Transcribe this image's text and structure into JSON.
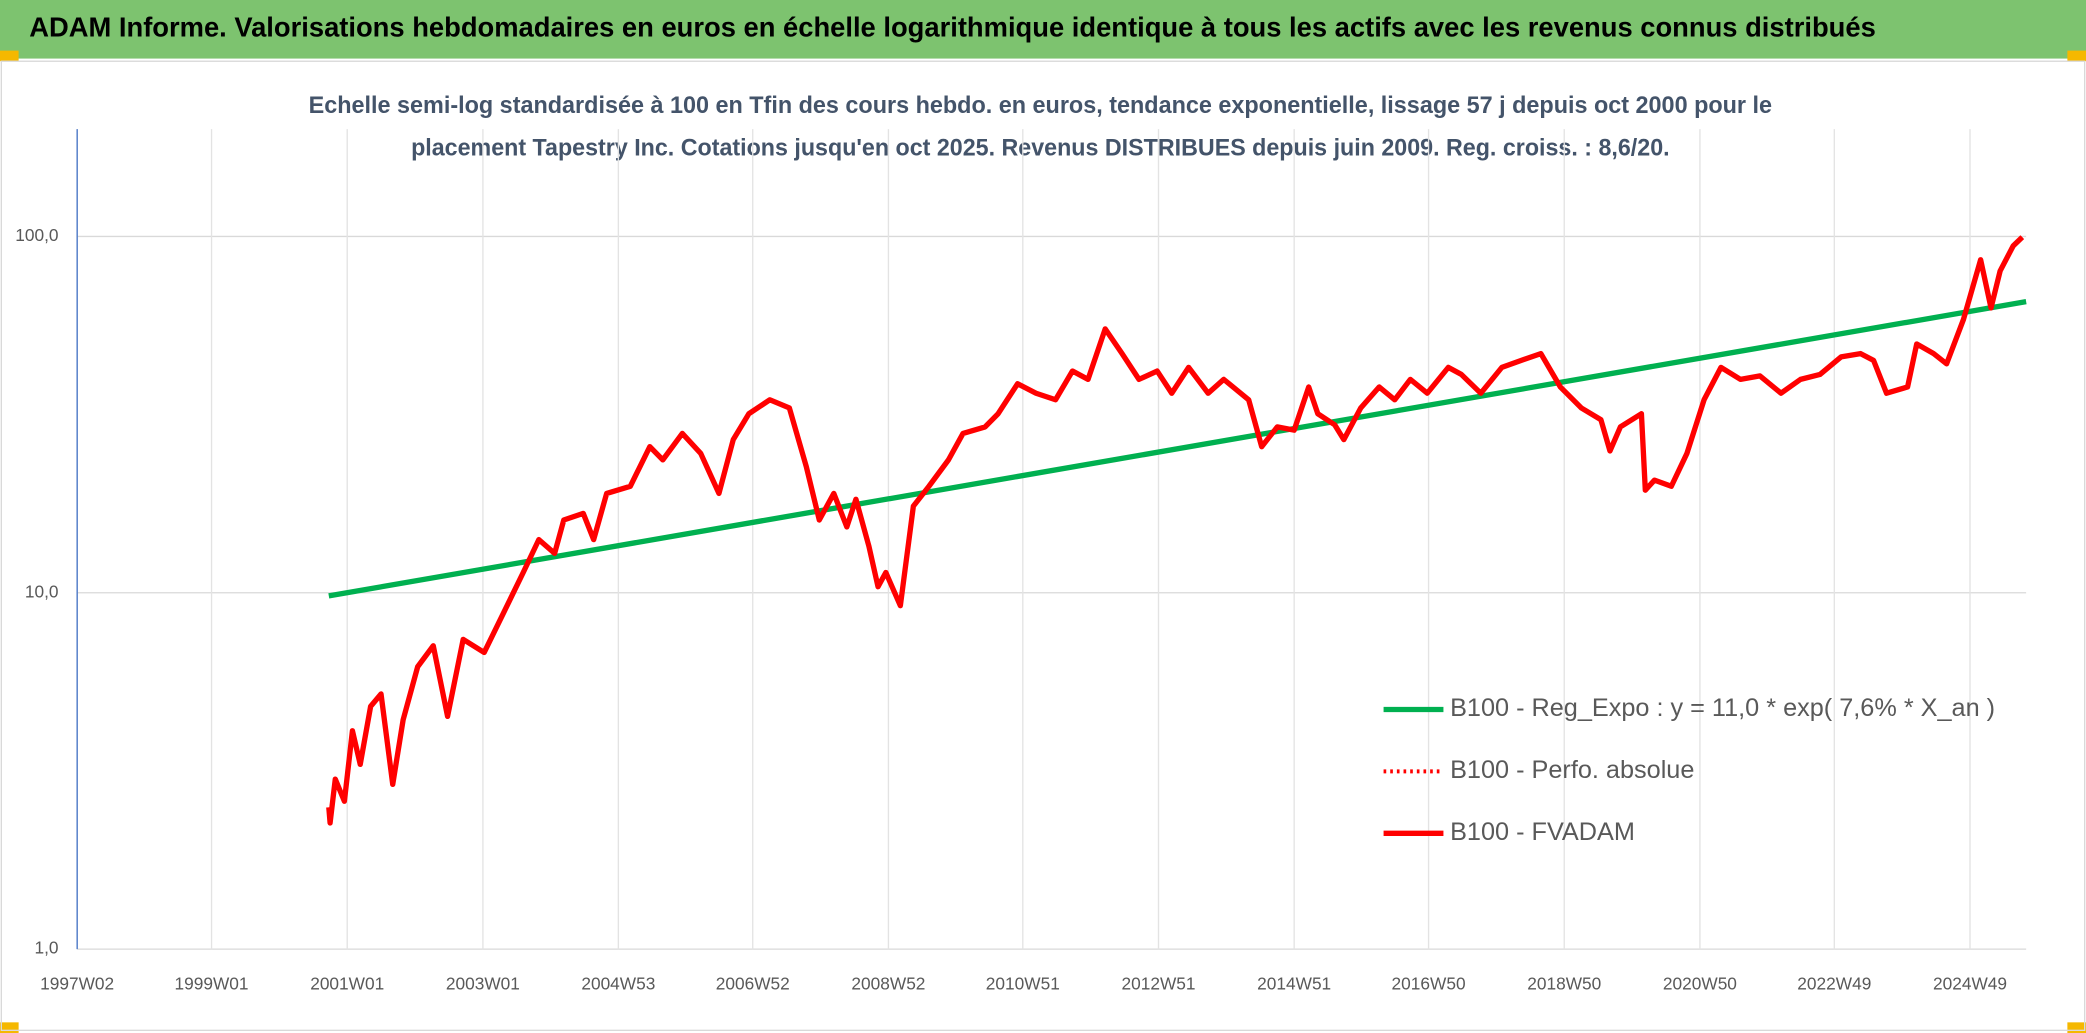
{
  "chart_data": {
    "type": "line",
    "title": "ADAM Informe. Valorisations hebdomadaires en euros en échelle logarithmique identique à tous les actifs avec les revenus connus distribués",
    "subtitle": [
      "Echelle semi-log standardisée à 100 en Tfin des cours hebdo. en euros, tendance exponentielle, lissage 57 j depuis oct 2000 pour le",
      "placement Tapestry Inc. Cotations jusqu'en oct 2025. Revenus DISTRIBUES depuis juin 2009. Reg. croiss. : 8,6/20."
    ],
    "log_scale": true,
    "grid": true,
    "legend": "right",
    "xlim": [
      "1997W02",
      "2025W40"
    ],
    "xticks": [
      "1997W02",
      "1999W01",
      "2001W01",
      "2003W01",
      "2004W53",
      "2006W52",
      "2008W52",
      "2010W51",
      "2012W51",
      "2014W51",
      "2016W50",
      "2018W50",
      "2020W50",
      "2022W49",
      "2024W49"
    ],
    "ylim": [
      1,
      200
    ],
    "yticks": [
      {
        "value": 1,
        "label": "1,0"
      },
      {
        "value": 10,
        "label": "10,0"
      },
      {
        "value": 100,
        "label": "100,0"
      }
    ],
    "series": [
      {
        "name": "B100 - Reg_Expo : y = 11,0 * exp( 7,6% *  X_an )",
        "color": "#00b050",
        "dash": false,
        "x": [
          "2000W39",
          "2025W40"
        ],
        "values": [
          9.8,
          65.6
        ]
      },
      {
        "name": "B100 - Perfo. absolue",
        "color": "#ff0000",
        "dash": true,
        "x": [
          "2000W39",
          "2000W40",
          "2000W44",
          "2000W51",
          "2001W05",
          "2001W11",
          "2001W19",
          "2001W27",
          "2001W36",
          "2001W44",
          "2002W03",
          "2002W15",
          "2002W26",
          "2002W38",
          "2003W02",
          "2003W17",
          "2003W32",
          "2003W44",
          "2004W04",
          "2004W11",
          "2004W26",
          "2004W34",
          "2004W44",
          "2005W10",
          "2005W25",
          "2005W35",
          "2005W50",
          "2006W12",
          "2006W26",
          "2006W37",
          "2006W49",
          "2007W13",
          "2007W28",
          "2007W41",
          "2007W51",
          "2008W10",
          "2008W20",
          "2008W27",
          "2008W37",
          "2008W44",
          "2008W50",
          "2009W09",
          "2009W19",
          "2009W31",
          "2009W46",
          "2010W05",
          "2010W22",
          "2010W32",
          "2010W47",
          "2011W09",
          "2011W24",
          "2011W37",
          "2011W49",
          "2012W10",
          "2012W23",
          "2012W36",
          "2012W50",
          "2013W09",
          "2013W22",
          "2013W37",
          "2013W49",
          "2014W16",
          "2014W26",
          "2014W38",
          "2014W51",
          "2015W10",
          "2015W17",
          "2015W30",
          "2015W37",
          "2015W50",
          "2016W12",
          "2016W24",
          "2016W36",
          "2016W49",
          "2017W13",
          "2017W23",
          "2017W38",
          "2018W02",
          "2018W17",
          "2018W32",
          "2018W47",
          "2019W11",
          "2019W26",
          "2019W33",
          "2019W41",
          "2020W05",
          "2020W08",
          "2020W15",
          "2020W28",
          "2020W40",
          "2021W01",
          "2021W14",
          "2021W29",
          "2021W44",
          "2022W08",
          "2022W23",
          "2022W38",
          "2023W02",
          "2023W17",
          "2023W27",
          "2023W37",
          "2024W01",
          "2024W08",
          "2024W21",
          "2024W31",
          "2024W44",
          "2025W05",
          "2025W13",
          "2025W20",
          "2025W30",
          "2025W37"
        ],
        "values": [
          2.5,
          2.26,
          3.0,
          2.6,
          4.1,
          3.3,
          4.8,
          5.2,
          2.9,
          4.4,
          6.2,
          7.1,
          4.5,
          7.4,
          6.8,
          8.8,
          11.4,
          14.1,
          12.9,
          16,
          16.7,
          14.1,
          19,
          19.9,
          25.7,
          23.6,
          28,
          24.6,
          19,
          26.9,
          31.8,
          34.8,
          33,
          22.6,
          16,
          19,
          15.3,
          18.3,
          13.5,
          10.4,
          11.4,
          9.2,
          17.5,
          19.9,
          23.6,
          28,
          29.2,
          31.8,
          38.6,
          36.3,
          34.8,
          41.9,
          39.7,
          55,
          46.9,
          39.7,
          41.9,
          36.3,
          42.9,
          36.3,
          39.7,
          34.8,
          25.7,
          29.2,
          28.6,
          37.8,
          31.8,
          29.6,
          26.9,
          33,
          37.8,
          34.8,
          39.7,
          36.3,
          42.9,
          41,
          36.3,
          42.9,
          44.9,
          46.9,
          37.8,
          33,
          30.6,
          25,
          29.2,
          31.8,
          19.4,
          20.7,
          19.9,
          24.6,
          34.8,
          42.9,
          39.7,
          40.6,
          36.3,
          39.7,
          41,
          45.9,
          46.9,
          44.9,
          36.3,
          37.8,
          49.9,
          46.9,
          43.9,
          58.5,
          86,
          63,
          80,
          94,
          99.5
        ]
      },
      {
        "name": "B100 - FVADAM",
        "color": "#ff0000",
        "dash": false,
        "x": [
          "2000W39",
          "2000W40",
          "2000W44",
          "2000W51",
          "2001W05",
          "2001W11",
          "2001W19",
          "2001W27",
          "2001W36",
          "2001W44",
          "2002W03",
          "2002W15",
          "2002W26",
          "2002W38",
          "2003W02",
          "2003W17",
          "2003W32",
          "2003W44",
          "2004W04",
          "2004W11",
          "2004W26",
          "2004W34",
          "2004W44",
          "2005W10",
          "2005W25",
          "2005W35",
          "2005W50",
          "2006W12",
          "2006W26",
          "2006W37",
          "2006W49",
          "2007W13",
          "2007W28",
          "2007W41",
          "2007W51",
          "2008W10",
          "2008W20",
          "2008W27",
          "2008W37",
          "2008W44",
          "2008W50",
          "2009W09",
          "2009W19",
          "2009W31",
          "2009W46",
          "2010W05",
          "2010W22",
          "2010W32",
          "2010W47",
          "2011W09",
          "2011W24",
          "2011W37",
          "2011W49",
          "2012W10",
          "2012W23",
          "2012W36",
          "2012W50",
          "2013W09",
          "2013W22",
          "2013W37",
          "2013W49",
          "2014W16",
          "2014W26",
          "2014W38",
          "2014W51",
          "2015W10",
          "2015W17",
          "2015W30",
          "2015W37",
          "2015W50",
          "2016W12",
          "2016W24",
          "2016W36",
          "2016W49",
          "2017W13",
          "2017W23",
          "2017W38",
          "2018W02",
          "2018W17",
          "2018W32",
          "2018W47",
          "2019W11",
          "2019W26",
          "2019W33",
          "2019W41",
          "2020W05",
          "2020W08",
          "2020W15",
          "2020W28",
          "2020W40",
          "2021W01",
          "2021W14",
          "2021W29",
          "2021W44",
          "2022W08",
          "2022W23",
          "2022W38",
          "2023W02",
          "2023W17",
          "2023W27",
          "2023W37",
          "2024W01",
          "2024W08",
          "2024W21",
          "2024W31",
          "2024W44",
          "2025W05",
          "2025W13",
          "2025W20",
          "2025W30",
          "2025W37"
        ],
        "values": [
          2.5,
          2.26,
          3.0,
          2.6,
          4.1,
          3.3,
          4.8,
          5.2,
          2.9,
          4.4,
          6.2,
          7.1,
          4.5,
          7.4,
          6.8,
          8.8,
          11.4,
          14.1,
          12.9,
          16,
          16.7,
          14.1,
          19,
          19.9,
          25.7,
          23.6,
          28,
          24.6,
          19,
          26.9,
          31.8,
          34.8,
          33,
          22.6,
          16,
          19,
          15.3,
          18.3,
          13.5,
          10.4,
          11.4,
          9.2,
          17.5,
          19.9,
          23.6,
          28,
          29.2,
          31.8,
          38.6,
          36.3,
          34.8,
          41.9,
          39.7,
          55,
          46.9,
          39.7,
          41.9,
          36.3,
          42.9,
          36.3,
          39.7,
          34.8,
          25.7,
          29.2,
          28.6,
          37.8,
          31.8,
          29.6,
          26.9,
          33,
          37.8,
          34.8,
          39.7,
          36.3,
          42.9,
          41,
          36.3,
          42.9,
          44.9,
          46.9,
          37.8,
          33,
          30.6,
          25,
          29.2,
          31.8,
          19.4,
          20.7,
          19.9,
          24.6,
          34.8,
          42.9,
          39.7,
          40.6,
          36.3,
          39.7,
          41,
          45.9,
          46.9,
          44.9,
          36.3,
          37.8,
          49.9,
          46.9,
          43.9,
          58.5,
          86,
          63,
          80,
          94,
          99.5
        ]
      }
    ]
  }
}
